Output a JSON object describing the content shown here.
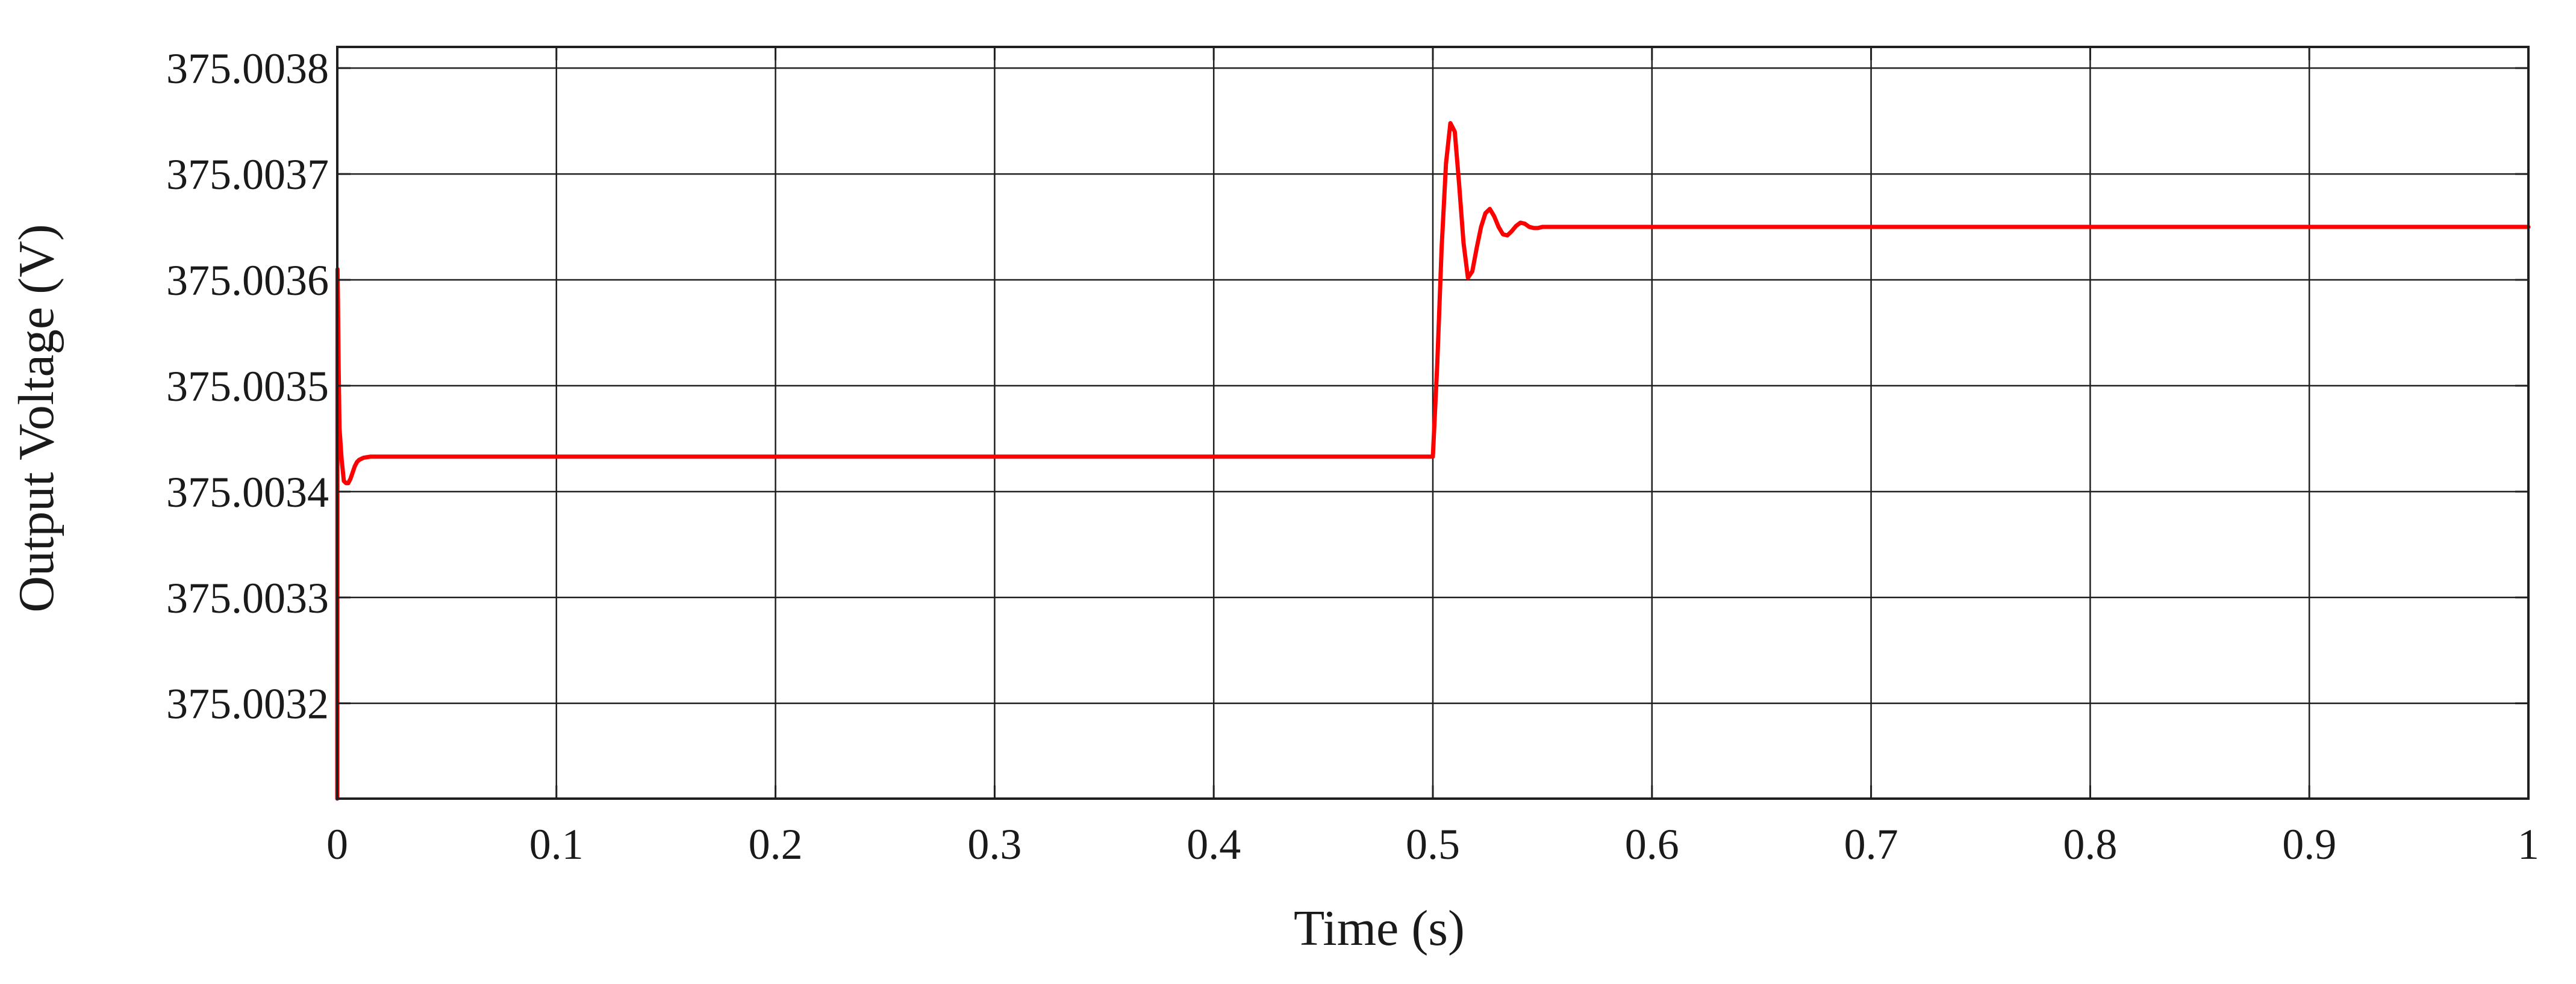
{
  "chart_data": {
    "type": "line",
    "title": "",
    "xlabel": "Time (s)",
    "ylabel": "Output Voltage (V)",
    "xlim": [
      0,
      1
    ],
    "ylim": [
      375.00311,
      375.00382
    ],
    "xticks": [
      0,
      0.1,
      0.2,
      0.3,
      0.4,
      0.5,
      0.6,
      0.7,
      0.8,
      0.9,
      1
    ],
    "xtick_labels": [
      "0",
      "0.1",
      "0.2",
      "0.3",
      "0.4",
      "0.5",
      "0.6",
      "0.7",
      "0.8",
      "0.9",
      "1"
    ],
    "yticks": [
      375.0032,
      375.0033,
      375.0034,
      375.0035,
      375.0036,
      375.0037,
      375.0038
    ],
    "ytick_labels": [
      "375.0032",
      "375.0033",
      "375.0034",
      "375.0035",
      "375.0036",
      "375.0037",
      "375.0038"
    ],
    "grid": true,
    "legend": "none",
    "series": [
      {
        "color": "#ff0000",
        "x": [
          0,
          0.0001,
          0.0003,
          0.0006,
          0.001,
          0.002,
          0.003,
          0.004,
          0.005,
          0.006,
          0.007,
          0.008,
          0.009,
          0.01,
          0.012,
          0.015,
          0.02,
          0.1,
          0.2,
          0.3,
          0.4,
          0.499,
          0.5,
          0.502,
          0.504,
          0.506,
          0.508,
          0.51,
          0.512,
          0.514,
          0.516,
          0.518,
          0.52,
          0.522,
          0.524,
          0.526,
          0.528,
          0.53,
          0.532,
          0.534,
          0.536,
          0.538,
          0.54,
          0.542,
          0.544,
          0.546,
          0.548,
          0.55,
          0.555,
          0.56,
          0.6,
          0.7,
          0.8,
          0.9,
          1.0
        ],
        "y": [
          375.00311,
          375.00361,
          375.00358,
          375.00352,
          375.00346,
          375.00343,
          375.00341,
          375.003408,
          375.003408,
          375.003412,
          375.003418,
          375.003424,
          375.003428,
          375.00343,
          375.003432,
          375.003433,
          375.003433,
          375.003433,
          375.003433,
          375.003433,
          375.003433,
          375.003433,
          375.003433,
          375.00352,
          375.00363,
          375.00371,
          375.003748,
          375.00374,
          375.00369,
          375.003635,
          375.003602,
          375.003608,
          375.00363,
          375.00365,
          375.003663,
          375.003667,
          375.00366,
          375.00365,
          375.003643,
          375.003642,
          375.003646,
          375.003651,
          375.003654,
          375.003653,
          375.00365,
          375.003649,
          375.003649,
          375.00365,
          375.00365,
          375.00365,
          375.00365,
          375.00365,
          375.00365,
          375.00365,
          375.00365
        ]
      }
    ]
  }
}
